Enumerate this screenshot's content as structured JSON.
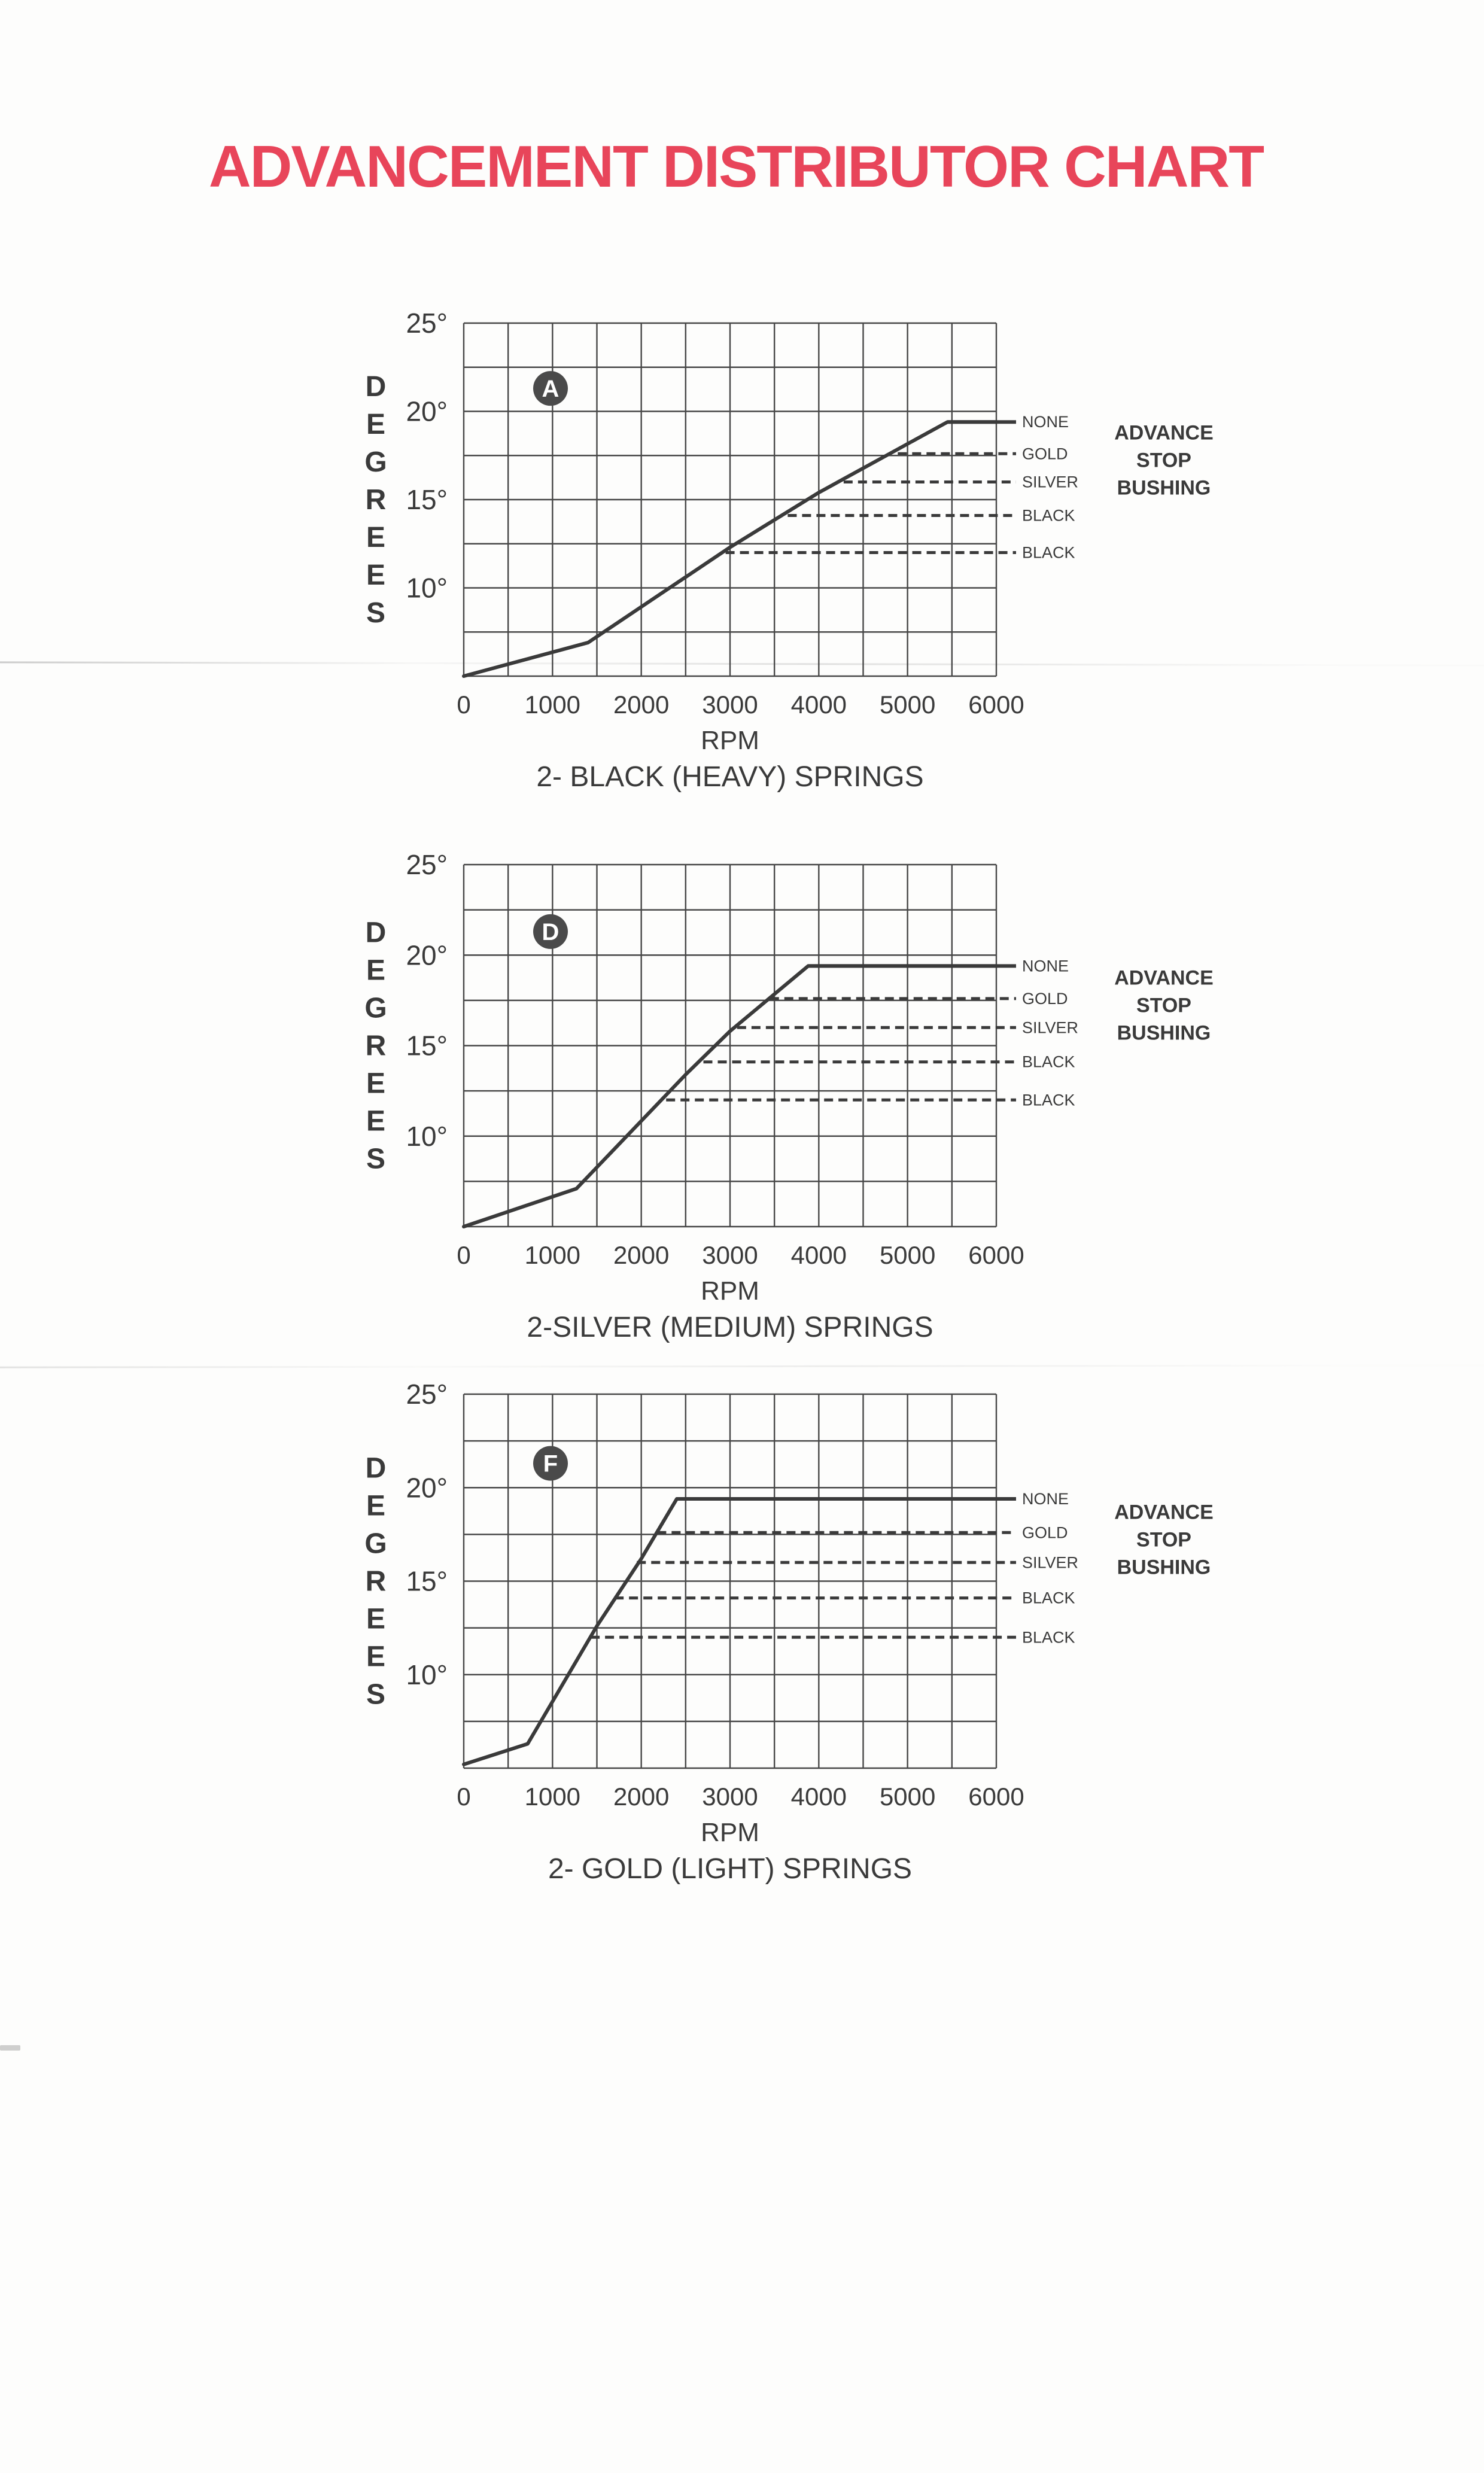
{
  "page": {
    "title": "ADVANCEMENT DISTRIBUTOR CHART"
  },
  "colors": {
    "title": "#e8455a",
    "ink": "#3a3a3a",
    "grid": "#474747",
    "badge_fill": "#4a4a4a",
    "badge_text": "#ffffff",
    "paper": "#fdfdfc"
  },
  "axis": {
    "x_label": "RPM",
    "y_axis_letters": "DEGREES",
    "x_tick_labels": [
      "0",
      "1000",
      "2000",
      "3000",
      "4000",
      "5000",
      "6000"
    ],
    "x_tick_values": [
      0,
      1000,
      2000,
      3000,
      4000,
      5000,
      6000
    ],
    "y_tick_labels": [
      "25°",
      "20°",
      "15°",
      "10°"
    ],
    "y_tick_values": [
      25,
      20,
      15,
      10
    ],
    "x_range": [
      0,
      6000
    ],
    "x_grid_step": 500,
    "y_range": [
      5,
      25
    ],
    "y_grid_step": 2.5,
    "grid": true
  },
  "advance_stop_bushing_heading_lines": [
    "ADVANCE",
    "STOP",
    "BUSHING"
  ],
  "chart_data": [
    {
      "type": "line",
      "badge": "A",
      "caption": "2- BLACK (HEAVY) SPRINGS",
      "xlabel": "RPM",
      "ylabel": "DEGREES",
      "x_range": [
        0,
        6000
      ],
      "y_range": [
        5,
        25
      ],
      "curve_rpm_degrees": [
        [
          0,
          5
        ],
        [
          1400,
          6.9
        ],
        [
          3000,
          12.3
        ],
        [
          4000,
          15.4
        ],
        [
          5450,
          19.4
        ],
        [
          6000,
          19.4
        ]
      ],
      "advance_stop_lines": [
        {
          "label": "NONE",
          "degrees": 19.4,
          "from_rpm": 5450,
          "style": "solid"
        },
        {
          "label": "GOLD",
          "degrees": 17.6,
          "from_rpm": 4890,
          "style": "dashed"
        },
        {
          "label": "SILVER",
          "degrees": 16.0,
          "from_rpm": 4280,
          "style": "dashed"
        },
        {
          "label": "BLACK",
          "degrees": 14.1,
          "from_rpm": 3650,
          "style": "dashed"
        },
        {
          "label": "BLACK",
          "degrees": 12.0,
          "from_rpm": 2950,
          "style": "dashed"
        }
      ]
    },
    {
      "type": "line",
      "badge": "D",
      "caption": "2-SILVER (MEDIUM) SPRINGS",
      "xlabel": "RPM",
      "ylabel": "DEGREES",
      "x_range": [
        0,
        6000
      ],
      "y_range": [
        5,
        25
      ],
      "curve_rpm_degrees": [
        [
          0,
          5
        ],
        [
          1270,
          7.1
        ],
        [
          2500,
          13.4
        ],
        [
          3000,
          15.8
        ],
        [
          3880,
          19.4
        ],
        [
          6000,
          19.4
        ]
      ],
      "advance_stop_lines": [
        {
          "label": "NONE",
          "degrees": 19.4,
          "from_rpm": 3880,
          "style": "solid"
        },
        {
          "label": "GOLD",
          "degrees": 17.6,
          "from_rpm": 3450,
          "style": "dashed"
        },
        {
          "label": "SILVER",
          "degrees": 16.0,
          "from_rpm": 3080,
          "style": "dashed"
        },
        {
          "label": "BLACK",
          "degrees": 14.1,
          "from_rpm": 2700,
          "style": "dashed"
        },
        {
          "label": "BLACK",
          "degrees": 12.0,
          "from_rpm": 2280,
          "style": "dashed"
        }
      ]
    },
    {
      "type": "line",
      "badge": "F",
      "caption": "2- GOLD (LIGHT) SPRINGS",
      "xlabel": "RPM",
      "ylabel": "DEGREES",
      "x_range": [
        0,
        6000
      ],
      "y_range": [
        5,
        25
      ],
      "curve_rpm_degrees": [
        [
          0,
          5.2
        ],
        [
          720,
          6.3
        ],
        [
          1500,
          12.6
        ],
        [
          2000,
          16.2
        ],
        [
          2400,
          19.4
        ],
        [
          6000,
          19.4
        ]
      ],
      "advance_stop_lines": [
        {
          "label": "NONE",
          "degrees": 19.4,
          "from_rpm": 2400,
          "style": "solid"
        },
        {
          "label": "GOLD",
          "degrees": 17.6,
          "from_rpm": 2180,
          "style": "dashed"
        },
        {
          "label": "SILVER",
          "degrees": 16.0,
          "from_rpm": 1950,
          "style": "dashed"
        },
        {
          "label": "BLACK",
          "degrees": 14.1,
          "from_rpm": 1700,
          "style": "dashed"
        },
        {
          "label": "BLACK",
          "degrees": 12.0,
          "from_rpm": 1430,
          "style": "dashed"
        }
      ]
    }
  ]
}
